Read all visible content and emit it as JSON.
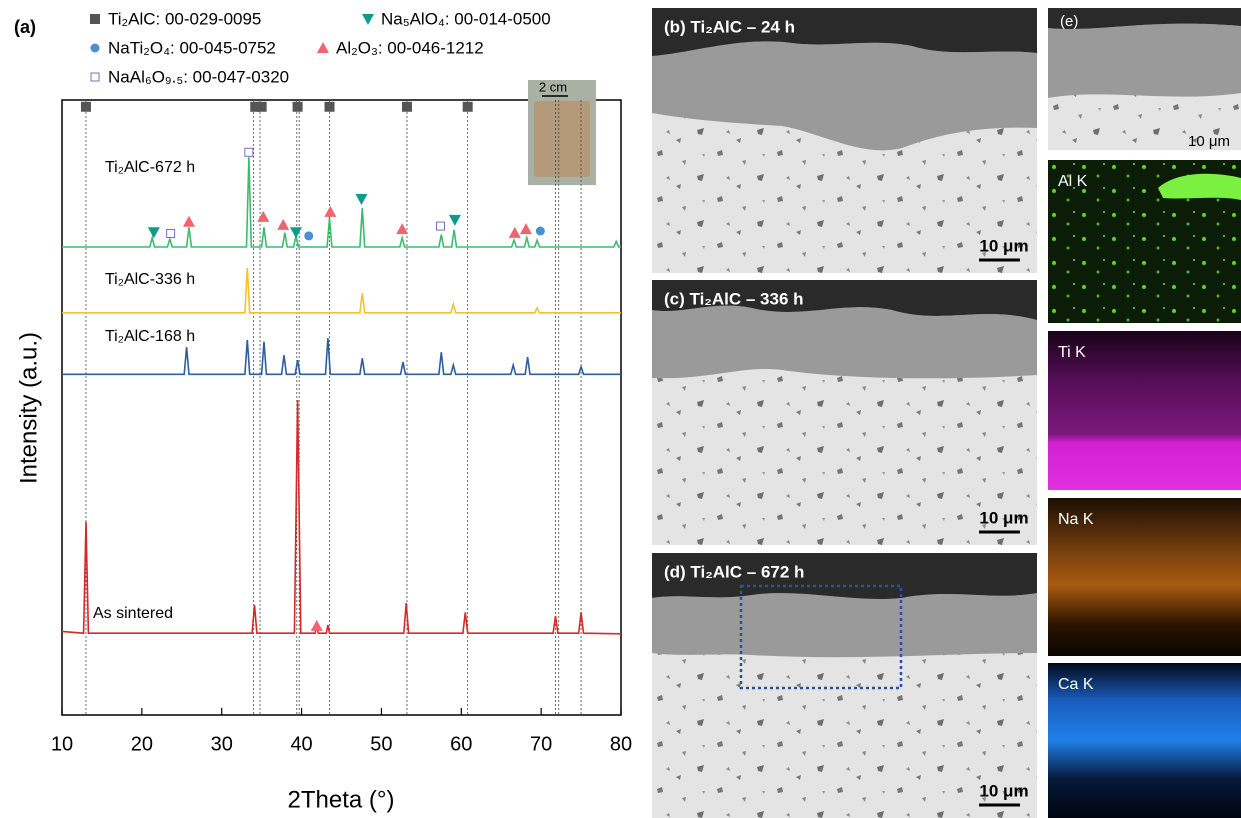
{
  "chart_data": {
    "type": "line",
    "panel_label": "(a)",
    "x_label": "2Theta (°)",
    "y_label": "Intensity (a.u.)",
    "inset_label": "2 cm",
    "xlim": [
      10,
      80
    ],
    "xticks": [
      10,
      20,
      30,
      40,
      50,
      60,
      70,
      80
    ],
    "ylim": [
      0,
      100
    ],
    "reference_lines": [
      13.0,
      34.0,
      34.8,
      39.4,
      39.7,
      43.5,
      53.2,
      60.8,
      71.8,
      72.2,
      75.0
    ],
    "series": [
      {
        "name": "Ti₂AlC-672 h",
        "color": "#3dbb6c",
        "x": [
          10,
          21.0,
          21.3,
          21.6,
          23.2,
          23.5,
          23.8,
          25.6,
          25.9,
          26.2,
          33.1,
          33.4,
          33.7,
          35.0,
          35.3,
          35.6,
          37.6,
          37.9,
          38.2,
          39.0,
          39.3,
          39.6,
          43.2,
          43.5,
          43.8,
          47.3,
          47.6,
          47.9,
          52.3,
          52.6,
          52.9,
          57.2,
          57.5,
          57.8,
          58.8,
          59.1,
          59.4,
          66.3,
          66.6,
          66.9,
          67.9,
          68.2,
          68.5,
          69.2,
          69.5,
          69.8,
          79.1,
          79.4,
          79.7,
          80
        ],
        "values": [
          76.1,
          76.1,
          77.6,
          76.1,
          76.1,
          77.4,
          76.1,
          76.1,
          79.3,
          76.1,
          76.1,
          90.7,
          76.1,
          76.1,
          79.3,
          76.1,
          76.1,
          78.4,
          76.1,
          76.1,
          77.9,
          76.1,
          76.1,
          80.8,
          76.1,
          76.1,
          82.4,
          76.1,
          76.1,
          77.6,
          76.1,
          76.1,
          78.1,
          76.1,
          76.1,
          78.9,
          76.1,
          76.1,
          77.2,
          76.1,
          76.1,
          77.6,
          76.1,
          76.1,
          77.2,
          76.1,
          76.1,
          77.0,
          76.1,
          76.1
        ]
      },
      {
        "name": "Ti₂AlC-336 h",
        "color": "#f2c12e",
        "x": [
          10,
          32.9,
          33.2,
          33.5,
          47.3,
          47.6,
          47.9,
          58.7,
          59.0,
          59.3,
          69.2,
          69.5,
          69.8,
          80
        ],
        "values": [
          65.4,
          65.4,
          72.7,
          65.4,
          65.4,
          68.6,
          65.4,
          65.4,
          66.8,
          65.4,
          65.4,
          66.2,
          65.4,
          65.4
        ]
      },
      {
        "name": "Ti₂AlC-168 h",
        "color": "#2f5e9e",
        "x": [
          10,
          25.3,
          25.6,
          25.9,
          32.9,
          33.2,
          33.5,
          35.0,
          35.3,
          35.6,
          37.5,
          37.8,
          38.1,
          39.2,
          39.5,
          39.8,
          43.0,
          43.3,
          43.6,
          47.3,
          47.6,
          47.9,
          52.4,
          52.7,
          53.0,
          57.2,
          57.5,
          57.8,
          58.7,
          59.0,
          59.3,
          66.2,
          66.5,
          66.8,
          68.0,
          68.3,
          68.6,
          74.7,
          75.0,
          75.3,
          80
        ],
        "values": [
          55.4,
          55.4,
          59.8,
          55.4,
          55.4,
          61.0,
          55.4,
          55.4,
          60.7,
          55.4,
          55.4,
          58.5,
          55.4,
          55.4,
          57.7,
          55.4,
          55.4,
          61.3,
          55.4,
          55.4,
          58.0,
          55.4,
          55.4,
          57.4,
          55.4,
          55.4,
          59.0,
          55.4,
          55.4,
          56.9,
          55.4,
          55.4,
          56.9,
          55.4,
          55.4,
          58.2,
          55.4,
          55.4,
          56.6,
          55.4,
          55.4
        ]
      },
      {
        "name": "As sintered",
        "color": "#d42a2a",
        "x": [
          10,
          12.7,
          13.0,
          13.3,
          33.8,
          34.1,
          34.4,
          39.1,
          39.5,
          39.9,
          41.7,
          41.9,
          42.1,
          43.1,
          43.3,
          43.5,
          52.8,
          53.1,
          53.4,
          60.2,
          60.5,
          60.8,
          71.5,
          71.8,
          72.1,
          74.7,
          75.0,
          75.3,
          80
        ],
        "values": [
          13.6,
          13.3,
          31.4,
          13.3,
          13.3,
          17.9,
          13.3,
          13.3,
          51.2,
          13.3,
          13.3,
          14.6,
          13.3,
          13.3,
          14.6,
          13.3,
          13.3,
          18.2,
          13.3,
          13.3,
          16.7,
          13.3,
          13.3,
          16.1,
          13.3,
          13.3,
          16.7,
          13.3,
          13.2
        ]
      }
    ],
    "phases": [
      {
        "name": "Ti₂AlC: 00-029-0095",
        "color": "#555555",
        "shape": "square",
        "markers": [
          [
            13.0,
            98.9
          ],
          [
            34.2,
            98.9
          ],
          [
            35.0,
            98.9
          ],
          [
            39.5,
            98.9
          ],
          [
            43.5,
            98.9
          ],
          [
            53.2,
            98.9
          ],
          [
            60.8,
            98.9
          ]
        ]
      },
      {
        "name": "Na₅AlO₄: 00-014-0500",
        "color": "#0f9a8e",
        "shape": "triangle-down",
        "markers": [
          [
            21.5,
            78.5
          ],
          [
            39.3,
            78.5
          ],
          [
            47.5,
            83.9
          ],
          [
            59.2,
            80.5
          ]
        ]
      },
      {
        "name": "NaTi₂O₄: 00-045-0752",
        "color": "#4a8fd0",
        "shape": "circle",
        "markers": [
          [
            40.9,
            77.9
          ],
          [
            69.9,
            78.7
          ]
        ]
      },
      {
        "name": "Al₂O₃: 00-046-1212",
        "color": "#f06470",
        "shape": "triangle-up",
        "markers": [
          [
            25.9,
            80.2
          ],
          [
            35.2,
            81.0
          ],
          [
            37.7,
            79.7
          ],
          [
            43.6,
            81.8
          ],
          [
            52.6,
            79.0
          ],
          [
            66.7,
            78.4
          ],
          [
            68.1,
            79.0
          ],
          [
            41.9,
            14.5
          ]
        ]
      },
      {
        "name": "NaAl₆O₉.₅: 00-047-0320",
        "color": "#7070c0",
        "shape": "open-square",
        "markers": [
          [
            23.6,
            78.3
          ],
          [
            33.4,
            91.5
          ],
          [
            57.4,
            79.5
          ]
        ]
      }
    ]
  },
  "micrographs": [
    {
      "label": "(b) Ti₂AlC – 24 h",
      "scale_bar": "10 μm"
    },
    {
      "label": "(c) Ti₂AlC – 336 h",
      "scale_bar": "10 μm"
    },
    {
      "label": "(d) Ti₂AlC – 672 h",
      "scale_bar": "10 μm"
    }
  ],
  "element_maps": {
    "label": "(e)",
    "scale_bar": "10 μm",
    "maps": [
      "Al K",
      "Ti K",
      "Na K",
      "Ca K"
    ]
  }
}
